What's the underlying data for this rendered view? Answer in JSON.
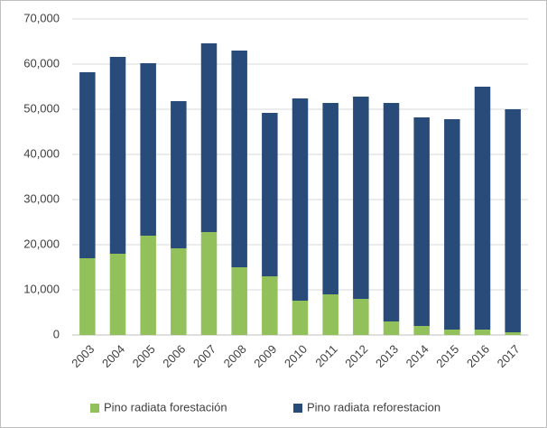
{
  "chart_data": {
    "type": "stacked_bar",
    "categories": [
      "2003",
      "2004",
      "2005",
      "2006",
      "2007",
      "2008",
      "2009",
      "2010",
      "2011",
      "2012",
      "2013",
      "2014",
      "2015",
      "2016",
      "2017"
    ],
    "series": [
      {
        "name": "Pino radiata forestación",
        "color": "#92c05a",
        "values": [
          17000,
          18000,
          22000,
          19200,
          22800,
          15000,
          13000,
          7600,
          9000,
          8000,
          3000,
          2000,
          1200,
          1200,
          600
        ]
      },
      {
        "name": "Pino radiata reforestacion",
        "color": "#294b79",
        "values": [
          41200,
          43600,
          38200,
          32600,
          41800,
          48000,
          36200,
          44800,
          42400,
          44800,
          48400,
          46200,
          46600,
          53800,
          49400
        ]
      }
    ],
    "ylim": [
      0,
      70000
    ],
    "yticks": [
      0,
      {
        "value": 10000,
        "label": "10,000"
      },
      {
        "value": 20000,
        "label": "20,000"
      },
      {
        "value": 30000,
        "label": "30,000"
      },
      {
        "value": 40000,
        "label": "40,000"
      },
      {
        "value": 50000,
        "label": "50,000"
      },
      {
        "value": 60000,
        "label": "60,000"
      },
      {
        "value": 70000,
        "label": "70,000"
      }
    ],
    "grid": true,
    "legend": "bottom"
  }
}
